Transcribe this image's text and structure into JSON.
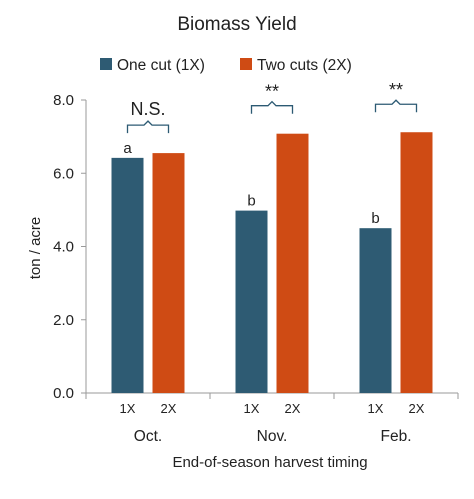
{
  "chart_data": {
    "type": "bar",
    "title": "Biomass Yield",
    "xlabel": "End-of-season harvest timing",
    "ylabel": "ton / acre",
    "ylim": [
      0,
      8
    ],
    "yticks": [
      "0.0",
      "2.0",
      "4.0",
      "6.0",
      "8.0"
    ],
    "grid": false,
    "legend_position": "top",
    "categories": [
      "Oct.",
      "Nov.",
      "Feb."
    ],
    "bar_labels": [
      "1X",
      "2X"
    ],
    "series": [
      {
        "name": "One cut (1X)",
        "color": "#2e5b73",
        "values": [
          6.42,
          4.98,
          4.5
        ],
        "letters": [
          "a",
          "b",
          "b"
        ]
      },
      {
        "name": "Two cuts (2X)",
        "color": "#cf4b14",
        "values": [
          6.55,
          7.08,
          7.12
        ]
      }
    ],
    "significance": [
      "N.S.",
      "**",
      "**"
    ]
  }
}
